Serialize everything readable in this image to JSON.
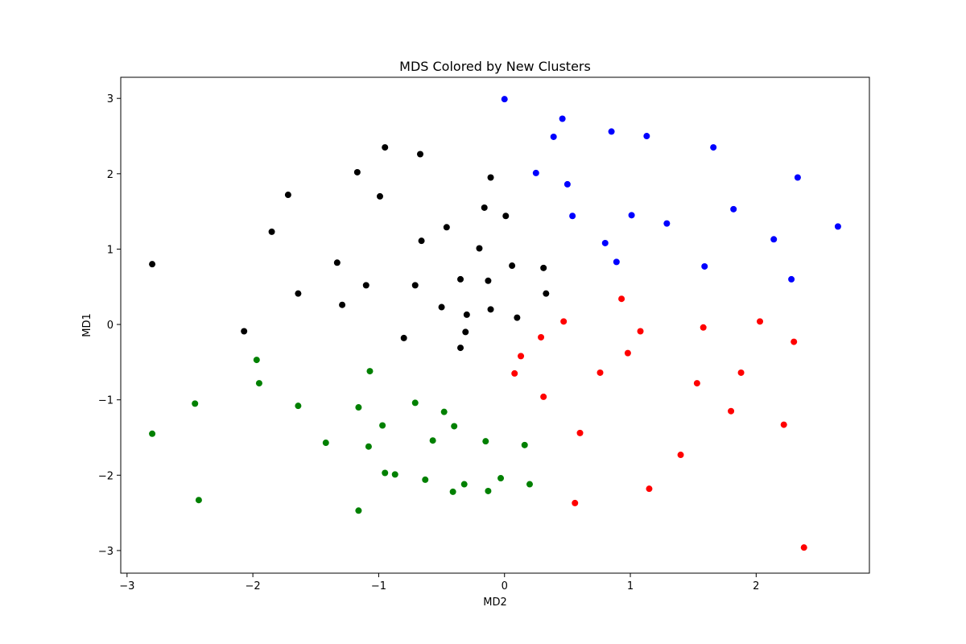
{
  "chart_data": {
    "type": "scatter",
    "title": "MDS Colored by New Clusters",
    "xlabel": "MD2",
    "ylabel": "MD1",
    "xlim": [
      -3.05,
      2.9
    ],
    "ylim": [
      -3.3,
      3.28
    ],
    "xticks": [
      -3,
      -2,
      -1,
      0,
      1,
      2
    ],
    "yticks": [
      -3,
      -2,
      -1,
      0,
      1,
      2,
      3
    ],
    "grid": false,
    "series": [
      {
        "color": "#0000ff",
        "points": [
          [
            0.0,
            2.99
          ],
          [
            0.46,
            2.73
          ],
          [
            0.39,
            2.49
          ],
          [
            0.85,
            2.56
          ],
          [
            1.13,
            2.5
          ],
          [
            1.66,
            2.35
          ],
          [
            0.25,
            2.01
          ],
          [
            0.5,
            1.86
          ],
          [
            2.33,
            1.95
          ],
          [
            1.82,
            1.53
          ],
          [
            0.54,
            1.44
          ],
          [
            1.01,
            1.45
          ],
          [
            1.29,
            1.34
          ],
          [
            2.65,
            1.3
          ],
          [
            2.14,
            1.13
          ],
          [
            0.8,
            1.08
          ],
          [
            0.89,
            0.83
          ],
          [
            1.59,
            0.77
          ],
          [
            2.28,
            0.6
          ]
        ]
      },
      {
        "color": "#000000",
        "points": [
          [
            -0.95,
            2.35
          ],
          [
            -0.67,
            2.26
          ],
          [
            -1.17,
            2.02
          ],
          [
            -0.11,
            1.95
          ],
          [
            -1.72,
            1.72
          ],
          [
            -0.99,
            1.7
          ],
          [
            -0.16,
            1.55
          ],
          [
            0.01,
            1.44
          ],
          [
            -0.46,
            1.29
          ],
          [
            -1.85,
            1.23
          ],
          [
            -0.66,
            1.11
          ],
          [
            -0.2,
            1.01
          ],
          [
            -2.8,
            0.8
          ],
          [
            -1.33,
            0.82
          ],
          [
            0.06,
            0.78
          ],
          [
            0.31,
            0.75
          ],
          [
            -0.35,
            0.6
          ],
          [
            -0.13,
            0.58
          ],
          [
            -1.1,
            0.52
          ],
          [
            -0.71,
            0.52
          ],
          [
            -1.64,
            0.41
          ],
          [
            0.33,
            0.41
          ],
          [
            -1.29,
            0.26
          ],
          [
            -0.5,
            0.23
          ],
          [
            -0.11,
            0.2
          ],
          [
            -0.3,
            0.13
          ],
          [
            0.1,
            0.09
          ],
          [
            -2.07,
            -0.09
          ],
          [
            -0.31,
            -0.1
          ],
          [
            -0.8,
            -0.18
          ],
          [
            -0.35,
            -0.31
          ]
        ]
      },
      {
        "color": "#ff0000",
        "points": [
          [
            0.93,
            0.34
          ],
          [
            0.47,
            0.04
          ],
          [
            2.03,
            0.04
          ],
          [
            1.58,
            -0.04
          ],
          [
            1.08,
            -0.09
          ],
          [
            0.29,
            -0.17
          ],
          [
            2.3,
            -0.23
          ],
          [
            0.98,
            -0.38
          ],
          [
            0.13,
            -0.42
          ],
          [
            0.08,
            -0.65
          ],
          [
            0.76,
            -0.64
          ],
          [
            1.88,
            -0.64
          ],
          [
            1.53,
            -0.78
          ],
          [
            0.31,
            -0.96
          ],
          [
            1.8,
            -1.15
          ],
          [
            2.22,
            -1.33
          ],
          [
            0.6,
            -1.44
          ],
          [
            1.4,
            -1.73
          ],
          [
            1.15,
            -2.18
          ],
          [
            0.56,
            -2.37
          ],
          [
            2.38,
            -2.96
          ]
        ]
      },
      {
        "color": "#008000",
        "points": [
          [
            -1.97,
            -0.47
          ],
          [
            -1.07,
            -0.62
          ],
          [
            -1.95,
            -0.78
          ],
          [
            -2.46,
            -1.05
          ],
          [
            -1.64,
            -1.08
          ],
          [
            -1.16,
            -1.1
          ],
          [
            -0.71,
            -1.04
          ],
          [
            -0.48,
            -1.16
          ],
          [
            -0.97,
            -1.34
          ],
          [
            -0.4,
            -1.35
          ],
          [
            -2.8,
            -1.45
          ],
          [
            -1.42,
            -1.57
          ],
          [
            -1.08,
            -1.62
          ],
          [
            -0.57,
            -1.54
          ],
          [
            -0.15,
            -1.55
          ],
          [
            0.16,
            -1.6
          ],
          [
            -0.95,
            -1.97
          ],
          [
            -0.87,
            -1.99
          ],
          [
            -0.63,
            -2.06
          ],
          [
            -0.03,
            -2.04
          ],
          [
            -0.32,
            -2.12
          ],
          [
            0.2,
            -2.12
          ],
          [
            -0.41,
            -2.22
          ],
          [
            -0.13,
            -2.21
          ],
          [
            -2.43,
            -2.33
          ],
          [
            -1.16,
            -2.47
          ]
        ]
      }
    ]
  }
}
